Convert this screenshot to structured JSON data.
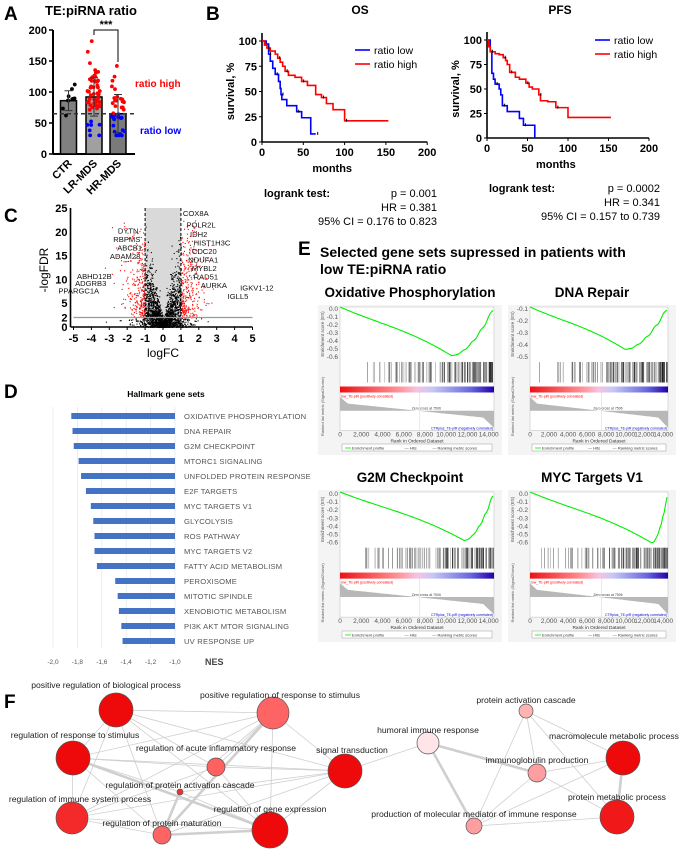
{
  "panel_labels": {
    "a": "A",
    "b": "B",
    "c": "C",
    "d": "D",
    "e": "E",
    "f": "F"
  },
  "chart_data": [
    {
      "id": "A",
      "type": "bar",
      "title": "TE:piRNA ratio",
      "categories": [
        "CTR",
        "LR-MDS",
        "HR-MDS"
      ],
      "values": [
        86,
        92,
        65
      ],
      "error": [
        16,
        31,
        31
      ],
      "point_ranges": [
        [
          62,
          112
        ],
        [
          30,
          182
        ],
        [
          30,
          142
        ]
      ],
      "threshold": 65,
      "ylim": [
        0,
        200
      ],
      "yticks": [
        0,
        50,
        100,
        150,
        200
      ],
      "significance": "***",
      "annotations": {
        "high": "ratio high",
        "low": "ratio low"
      },
      "colors": {
        "bar": "#7f7f7f",
        "high": "#ff0000",
        "low": "#0000ff",
        "ctr": "#000000"
      }
    },
    {
      "id": "B-OS",
      "type": "line",
      "step": true,
      "title": "OS",
      "xlabel": "months",
      "ylabel": "survival, %",
      "xlim": [
        0,
        200
      ],
      "ylim": [
        0,
        100
      ],
      "xticks": [
        0,
        50,
        100,
        150,
        200
      ],
      "yticks": [
        0,
        25,
        50,
        75,
        100
      ],
      "legend": "top-right",
      "series": [
        {
          "name": "ratio low",
          "color": "#0000ff",
          "x": [
            0,
            5,
            8,
            10,
            13,
            16,
            20,
            22,
            23,
            24,
            30,
            42,
            48,
            59,
            65
          ],
          "y": [
            100,
            97,
            87,
            80,
            73,
            67,
            60,
            53,
            47,
            42,
            36,
            30,
            24,
            8,
            8
          ]
        },
        {
          "name": "ratio high",
          "color": "#ff0000",
          "x": [
            0,
            3,
            6,
            10,
            16,
            19,
            22,
            25,
            28,
            32,
            40,
            48,
            55,
            65,
            72,
            78,
            86,
            100,
            153
          ],
          "y": [
            100,
            96,
            93,
            90,
            87,
            83,
            79,
            75,
            70,
            66,
            64,
            60,
            56,
            47,
            44,
            38,
            32,
            21,
            21
          ]
        }
      ],
      "stats": {
        "title": "logrank test:",
        "p": "p = 0.001",
        "hr": "HR = 0.381",
        "ci": "95% CI = 0.176 to 0.823"
      }
    },
    {
      "id": "B-PFS",
      "type": "line",
      "step": true,
      "title": "PFS",
      "xlabel": "months",
      "ylabel": "survival, %",
      "xlim": [
        0,
        200
      ],
      "ylim": [
        0,
        100
      ],
      "xticks": [
        0,
        50,
        100,
        150,
        200
      ],
      "yticks": [
        0,
        25,
        50,
        75,
        100
      ],
      "legend": "top-right",
      "series": [
        {
          "name": "ratio low",
          "color": "#0000ff",
          "x": [
            0,
            3,
            4,
            6,
            8,
            10,
            15,
            17,
            19,
            25,
            40,
            45,
            59
          ],
          "y": [
            100,
            100,
            88,
            66,
            60,
            55,
            50,
            44,
            33,
            27,
            20,
            13,
            0
          ]
        },
        {
          "name": "ratio high",
          "color": "#ff0000",
          "x": [
            0,
            2,
            4,
            10,
            15,
            20,
            23,
            25,
            28,
            35,
            40,
            48,
            52,
            56,
            64,
            66,
            75,
            85,
            100,
            153
          ],
          "y": [
            100,
            93,
            88,
            86,
            85,
            82,
            79,
            75,
            67,
            62,
            60,
            56,
            52,
            50,
            44,
            38,
            37,
            31,
            21,
            21
          ]
        }
      ],
      "stats": {
        "title": "logrank test:",
        "p": "p = 0.0002",
        "hr": "HR = 0.341",
        "ci": "95% CI = 0.157 to 0.739"
      }
    },
    {
      "id": "C",
      "type": "scatter",
      "xlabel": "logFC",
      "ylabel": "-logFDR",
      "xlim": [
        -5,
        5
      ],
      "ylim": [
        0,
        25
      ],
      "xticks": [
        -5,
        -4,
        -3,
        -2,
        -1,
        0,
        1,
        2,
        3,
        4,
        5
      ],
      "yticks": [
        0,
        2,
        5,
        10,
        15,
        20,
        25
      ],
      "fc_threshold": 1,
      "fdr_threshold": 2,
      "colors": {
        "significant": "#ff0000",
        "other": "#000000",
        "shade": "#d9d9d9"
      },
      "labeled_genes": [
        {
          "gene": "COX8A",
          "x": 1.0,
          "y": 24,
          "side": "right"
        },
        {
          "gene": "POLR2L",
          "x": 1.2,
          "y": 21.5,
          "side": "right"
        },
        {
          "gene": "IDH2",
          "x": 1.4,
          "y": 19.5,
          "side": "right"
        },
        {
          "gene": "HIST1H3C",
          "x": 1.6,
          "y": 18.3,
          "side": "right"
        },
        {
          "gene": "CDC20",
          "x": 1.5,
          "y": 17,
          "side": "right"
        },
        {
          "gene": "NDUFA1",
          "x": 1.3,
          "y": 15.8,
          "side": "right"
        },
        {
          "gene": "MYBL2",
          "x": 1.5,
          "y": 14.5,
          "side": "right"
        },
        {
          "gene": "RAD51",
          "x": 1.6,
          "y": 12.3,
          "side": "right"
        },
        {
          "gene": "AURKA",
          "x": 2.0,
          "y": 10.5,
          "side": "right"
        },
        {
          "gene": "IGKV1-12",
          "x": 4.2,
          "y": 8.3,
          "side": "right"
        },
        {
          "gene": "IGLL5",
          "x": 3.5,
          "y": 6.5,
          "side": "right"
        },
        {
          "gene": "DYTN",
          "x": -1.2,
          "y": 20.3,
          "side": "left"
        },
        {
          "gene": "RBPMS",
          "x": -1.1,
          "y": 18.8,
          "side": "left"
        },
        {
          "gene": "ABCB1",
          "x": -1.0,
          "y": 17.2,
          "side": "left"
        },
        {
          "gene": "ADAM28",
          "x": -1.1,
          "y": 15.6,
          "side": "left"
        },
        {
          "gene": "ABHD12B",
          "x": -2.7,
          "y": 10.7,
          "side": "left"
        },
        {
          "gene": "ADGRB3",
          "x": -3.0,
          "y": 9.2,
          "side": "left"
        },
        {
          "gene": "PPARGC1A",
          "x": -3.4,
          "y": 7.7,
          "side": "left"
        }
      ]
    },
    {
      "id": "D",
      "type": "bar",
      "orientation": "horizontal",
      "title": "Hallmark gene sets",
      "xlabel": "NES",
      "xlim": [
        -2.0,
        -1.0
      ],
      "xticks": [
        "-2,0",
        "-1,8",
        "-1,6",
        "-1,4",
        "-1,2",
        "-1,0"
      ],
      "color": "#4472c4",
      "categories": [
        "OXIDATIVE PHOSPHORYLATION",
        "DNA REPAIR",
        "G2M CHECKPOINT",
        "MTORC1 SIGNALING",
        "UNFOLDED PROTEIN RESPONSE",
        "E2F TARGETS",
        "MYC TARGETS V1",
        "GLYCOLYSIS",
        "ROS PATHWAY",
        "MYC TARGETS V2",
        "FATTY ACID METABOLISM",
        "PEROXISOME",
        "MITOTIC SPINDLE",
        "XENOBIOTIC METABOLISM",
        "PI3K AKT MTOR SIGNALING",
        "UV RESPONSE UP"
      ],
      "values": [
        -1.85,
        -1.84,
        -1.83,
        -1.79,
        -1.77,
        -1.73,
        -1.69,
        -1.67,
        -1.66,
        -1.66,
        -1.64,
        -1.49,
        -1.47,
        -1.46,
        -1.44,
        -1.43
      ]
    }
  ],
  "gsea": {
    "heading_line1": "Selected gene sets supressed in patients with",
    "heading_line2": "low TE:piRNA ratio",
    "es_label": "Enrichment score (ES)",
    "metric_label": "Ranked list metric (Signal2Noise)",
    "x_label": "Rank in Ordered Dataset",
    "x_ticks": [
      "0",
      "2,000",
      "4,000",
      "6,000",
      "8,000",
      "10,000",
      "12,000",
      "14,000"
    ],
    "pos_label": "low_TE-piR (positively correlated)",
    "neg_label": "CTRplus_TE-piR (negatively correlated)",
    "zero_cross": "Zero cross at 7506",
    "legend": [
      "Enrichment profile",
      "Hits",
      "Ranking metric scores"
    ],
    "colors": {
      "es": "#00ee00",
      "pos": "#ff0000",
      "neg": "#0000cc"
    },
    "panels": [
      {
        "title": "Oxidative Phosphorylation",
        "es_min": -0.63,
        "es_min_rank": 10500,
        "es_ticks": [
          "0.0",
          "-0.1",
          "-0.2",
          "-0.3",
          "-0.4",
          "-0.5",
          "-0.6"
        ]
      },
      {
        "title": "DNA Repair",
        "es_min": -0.55,
        "es_min_rank": 10000,
        "es_ticks": [
          "-0.1",
          "-0.2",
          "-0.3",
          "-0.4",
          "-0.5"
        ]
      },
      {
        "title": "G2M Checkpoint",
        "es_min": -0.62,
        "es_min_rank": 11700,
        "es_ticks": [
          "0.0",
          "-0.1",
          "-0.2",
          "-0.3",
          "-0.4",
          "-0.5",
          "-0.6"
        ]
      },
      {
        "title": "MYC  Targets V1",
        "es_min": -0.66,
        "es_min_rank": 12800,
        "es_ticks": [
          "0.0",
          "-0.1",
          "-0.2",
          "-0.3",
          "-0.4",
          "-0.5",
          "-0.6"
        ]
      }
    ]
  },
  "network": {
    "nodes": [
      {
        "label": "positive regulation of biological process",
        "color": "#ee0a0a"
      },
      {
        "label": "positive regulation of response to stimulus",
        "color": "#ff6464"
      },
      {
        "label": "regulation of response to stimulus",
        "color": "#ee0a0a"
      },
      {
        "label": "regulation of acute inflammatory response",
        "color": "#ff6060"
      },
      {
        "label": "signal transduction",
        "color": "#ee0a0a"
      },
      {
        "label": "regulation of protein activation cascade",
        "color": "#f03030"
      },
      {
        "label": "regulation of immune system process",
        "color": "#f42a2a"
      },
      {
        "label": "regulation of protein maturation",
        "color": "#ff6464"
      },
      {
        "label": "regulation of gene expression",
        "color": "#ee0a0a"
      },
      {
        "label": "humoral immune response",
        "color": "#ffe4e8"
      },
      {
        "label": "protein activation cascade",
        "color": "#ffb4b4"
      },
      {
        "label": "immunoglobulin production",
        "color": "#ff9ea0"
      },
      {
        "label": "macromolecule metabolic process",
        "color": "#ee0a0a"
      },
      {
        "label": "protein metabolic process",
        "color": "#f01818"
      },
      {
        "label": "production of molecular mediator of immune response",
        "color": "#ff9ea0"
      }
    ],
    "edges": [
      [
        0,
        1
      ],
      [
        0,
        2
      ],
      [
        0,
        3
      ],
      [
        0,
        4
      ],
      [
        0,
        6
      ],
      [
        0,
        8
      ],
      [
        0,
        7
      ],
      [
        1,
        2
      ],
      [
        1,
        3
      ],
      [
        1,
        4
      ],
      [
        1,
        5
      ],
      [
        1,
        7
      ],
      [
        1,
        8
      ],
      [
        1,
        6
      ],
      [
        2,
        3
      ],
      [
        2,
        4
      ],
      [
        2,
        6
      ],
      [
        2,
        8
      ],
      [
        2,
        5
      ],
      [
        2,
        7
      ],
      [
        3,
        4
      ],
      [
        3,
        8
      ],
      [
        3,
        6
      ],
      [
        4,
        6
      ],
      [
        4,
        7
      ],
      [
        4,
        8
      ],
      [
        4,
        5
      ],
      [
        5,
        7
      ],
      [
        5,
        8
      ],
      [
        6,
        7
      ],
      [
        6,
        8
      ],
      [
        7,
        8
      ],
      [
        4,
        9
      ],
      [
        9,
        11
      ],
      [
        9,
        14
      ],
      [
        10,
        11
      ],
      [
        10,
        14
      ],
      [
        10,
        12
      ],
      [
        10,
        13
      ],
      [
        11,
        12
      ],
      [
        11,
        13
      ],
      [
        11,
        14
      ],
      [
        14,
        13
      ],
      [
        14,
        12
      ],
      [
        12,
        13
      ]
    ],
    "thick_edges": [
      [
        9,
        11
      ],
      [
        9,
        14
      ],
      [
        12,
        13
      ],
      [
        7,
        8
      ],
      [
        1,
        7
      ],
      [
        5,
        7
      ],
      [
        2,
        8
      ]
    ]
  }
}
